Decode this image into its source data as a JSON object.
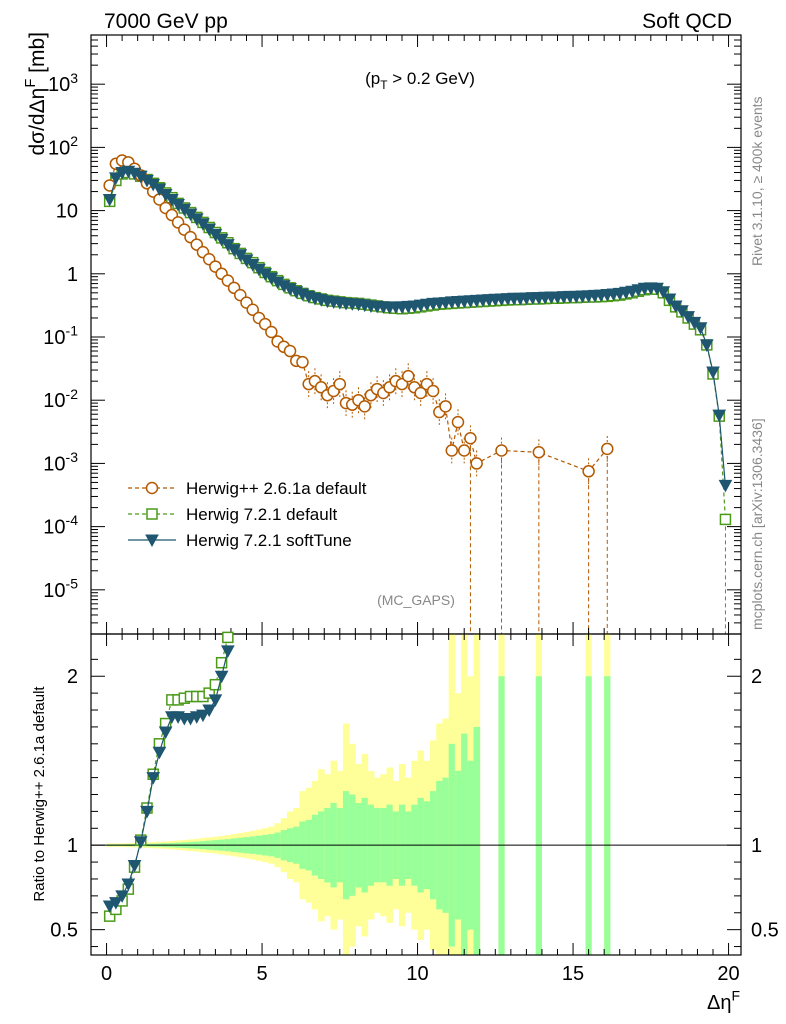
{
  "header": {
    "left": "7000 GeV pp",
    "right": "Soft QCD"
  },
  "side_text": {
    "top": "Rivet 3.1.10, ≥ 400k events",
    "bottom": "mcplots.cern.ch [arXiv:1306.3436]"
  },
  "chart_data": [
    {
      "type": "line",
      "panel": "main",
      "annotation": "(p_T > 0.2 GeV)",
      "watermark": "(MC_GAPS)",
      "ylabel": "dσ/dΔη^F [mb]",
      "yscale": "log",
      "ylim": [
        2e-06,
        6000
      ],
      "xlim": [
        -0.5,
        20.4
      ],
      "yticks": [
        {
          "v": 1000,
          "label": "10^3"
        },
        {
          "v": 100,
          "label": "10^2"
        },
        {
          "v": 10,
          "label": "10"
        },
        {
          "v": 1,
          "label": "1"
        },
        {
          "v": 0.1,
          "label": "10^-1"
        },
        {
          "v": 0.01,
          "label": "10^-2"
        },
        {
          "v": 0.001,
          "label": "10^-3"
        },
        {
          "v": 0.0001,
          "label": "10^-4"
        },
        {
          "v": 1e-05,
          "label": "10^-5"
        }
      ],
      "legend_position": "lower-left",
      "series": [
        {
          "name": "Herwig++ 2.6.1a default",
          "color": "#b35900",
          "marker": "circle",
          "line": "dashed",
          "x": [
            0.1,
            0.3,
            0.5,
            0.7,
            0.9,
            1.1,
            1.3,
            1.5,
            1.7,
            1.9,
            2.1,
            2.3,
            2.5,
            2.7,
            2.9,
            3.1,
            3.3,
            3.5,
            3.7,
            3.9,
            4.1,
            4.3,
            4.5,
            4.7,
            4.9,
            5.1,
            5.3,
            5.5,
            5.7,
            5.9,
            6.1,
            6.3,
            6.5,
            6.7,
            6.9,
            7.1,
            7.3,
            7.5,
            7.7,
            7.9,
            8.1,
            8.3,
            8.5,
            8.7,
            8.9,
            9.1,
            9.3,
            9.5,
            9.7,
            9.9,
            10.1,
            10.3,
            10.5,
            10.7,
            10.9,
            11.1,
            11.3,
            11.5,
            11.7,
            11.9,
            12.7,
            13.9,
            15.5,
            16.1
          ],
          "y": [
            25,
            55,
            62,
            58,
            46,
            36,
            27,
            20,
            15,
            11,
            8.5,
            6.5,
            5,
            3.8,
            2.9,
            2.2,
            1.7,
            1.3,
            1,
            0.78,
            0.6,
            0.46,
            0.35,
            0.27,
            0.2,
            0.16,
            0.12,
            0.085,
            0.07,
            0.06,
            0.042,
            0.04,
            0.018,
            0.02,
            0.016,
            0.012,
            0.014,
            0.018,
            0.009,
            0.0085,
            0.01,
            0.008,
            0.012,
            0.015,
            0.013,
            0.016,
            0.02,
            0.018,
            0.024,
            0.016,
            0.013,
            0.018,
            0.014,
            0.0065,
            0.008,
            0.0016,
            0.0045,
            0.0016,
            0.0025,
            0.001,
            0.0016,
            0.0015,
            0.00075,
            0.0017
          ]
        },
        {
          "name": "Herwig 7.2.1 default",
          "color": "#4c9a1a",
          "marker": "square",
          "line": "dashed",
          "x": [
            0.1,
            0.3,
            0.5,
            0.7,
            0.9,
            1.1,
            1.3,
            1.5,
            1.7,
            1.9,
            2.1,
            2.3,
            2.5,
            2.7,
            2.9,
            3.1,
            3.3,
            3.5,
            3.7,
            3.9,
            4.1,
            4.3,
            4.5,
            4.7,
            4.9,
            5.1,
            5.3,
            5.5,
            5.7,
            5.9,
            6.1,
            6.3,
            6.5,
            6.7,
            6.9,
            7.1,
            7.3,
            7.5,
            7.7,
            7.9,
            8.1,
            8.3,
            8.5,
            8.7,
            8.9,
            9.1,
            9.3,
            9.5,
            9.7,
            9.9,
            10.1,
            10.3,
            10.5,
            10.7,
            10.9,
            11.1,
            11.3,
            11.5,
            11.7,
            11.9,
            12.1,
            12.3,
            12.5,
            12.7,
            12.9,
            13.1,
            13.3,
            13.5,
            13.7,
            13.9,
            14.1,
            14.3,
            14.5,
            14.7,
            14.9,
            15.1,
            15.3,
            15.5,
            15.7,
            15.9,
            16.1,
            16.3,
            16.5,
            16.7,
            16.9,
            17.1,
            17.3,
            17.5,
            17.7,
            17.9,
            18.1,
            18.3,
            18.5,
            18.7,
            18.9,
            19.1,
            19.3,
            19.5,
            19.7,
            19.9
          ],
          "y": [
            14,
            30,
            38,
            40,
            38,
            35,
            31,
            27,
            23,
            19,
            16,
            13,
            11,
            9.3,
            7.8,
            6.5,
            5.4,
            4.5,
            3.7,
            3.1,
            2.5,
            2.1,
            1.75,
            1.5,
            1.25,
            1.05,
            0.9,
            0.78,
            0.68,
            0.6,
            0.54,
            0.49,
            0.45,
            0.42,
            0.4,
            0.38,
            0.37,
            0.36,
            0.35,
            0.345,
            0.34,
            0.33,
            0.32,
            0.31,
            0.3,
            0.29,
            0.285,
            0.28,
            0.285,
            0.29,
            0.3,
            0.31,
            0.32,
            0.33,
            0.335,
            0.34,
            0.345,
            0.35,
            0.355,
            0.36,
            0.365,
            0.37,
            0.375,
            0.38,
            0.385,
            0.39,
            0.39,
            0.395,
            0.4,
            0.4,
            0.405,
            0.41,
            0.41,
            0.415,
            0.42,
            0.42,
            0.425,
            0.43,
            0.43,
            0.435,
            0.44,
            0.45,
            0.46,
            0.48,
            0.5,
            0.53,
            0.56,
            0.58,
            0.57,
            0.5,
            0.38,
            0.3,
            0.25,
            0.2,
            0.16,
            0.13,
            0.075,
            0.026,
            0.0056,
            0.00013
          ]
        },
        {
          "name": "Herwig 7.2.1 softTune",
          "color": "#1f5670",
          "marker": "triangle-down",
          "line": "solid",
          "x": [
            0.1,
            0.3,
            0.5,
            0.7,
            0.9,
            1.1,
            1.3,
            1.5,
            1.7,
            1.9,
            2.1,
            2.3,
            2.5,
            2.7,
            2.9,
            3.1,
            3.3,
            3.5,
            3.7,
            3.9,
            4.1,
            4.3,
            4.5,
            4.7,
            4.9,
            5.1,
            5.3,
            5.5,
            5.7,
            5.9,
            6.1,
            6.3,
            6.5,
            6.7,
            6.9,
            7.1,
            7.3,
            7.5,
            7.7,
            7.9,
            8.1,
            8.3,
            8.5,
            8.7,
            8.9,
            9.1,
            9.3,
            9.5,
            9.7,
            9.9,
            10.1,
            10.3,
            10.5,
            10.7,
            10.9,
            11.1,
            11.3,
            11.5,
            11.7,
            11.9,
            12.1,
            12.3,
            12.5,
            12.7,
            12.9,
            13.1,
            13.3,
            13.5,
            13.7,
            13.9,
            14.1,
            14.3,
            14.5,
            14.7,
            14.9,
            15.1,
            15.3,
            15.5,
            15.7,
            15.9,
            16.1,
            16.3,
            16.5,
            16.7,
            16.9,
            17.1,
            17.3,
            17.5,
            17.7,
            17.9,
            18.1,
            18.3,
            18.5,
            18.7,
            18.9,
            19.1,
            19.3,
            19.5,
            19.7,
            19.9
          ],
          "y": [
            15,
            33,
            40,
            42,
            39,
            35,
            30,
            26,
            22,
            18,
            15,
            12.5,
            10.5,
            8.8,
            7.4,
            6.2,
            5.1,
            4.2,
            3.5,
            2.9,
            2.4,
            2,
            1.65,
            1.4,
            1.18,
            1,
            0.86,
            0.74,
            0.65,
            0.58,
            0.52,
            0.48,
            0.44,
            0.41,
            0.39,
            0.37,
            0.36,
            0.35,
            0.34,
            0.335,
            0.33,
            0.32,
            0.31,
            0.305,
            0.3,
            0.295,
            0.3,
            0.3,
            0.305,
            0.31,
            0.32,
            0.33,
            0.34,
            0.345,
            0.35,
            0.36,
            0.365,
            0.37,
            0.375,
            0.38,
            0.385,
            0.39,
            0.395,
            0.4,
            0.405,
            0.41,
            0.41,
            0.415,
            0.42,
            0.42,
            0.425,
            0.43,
            0.43,
            0.435,
            0.44,
            0.44,
            0.445,
            0.45,
            0.455,
            0.46,
            0.47,
            0.48,
            0.49,
            0.51,
            0.53,
            0.56,
            0.59,
            0.6,
            0.59,
            0.52,
            0.4,
            0.31,
            0.26,
            0.21,
            0.17,
            0.14,
            0.075,
            0.028,
            0.0058,
            0.00045
          ]
        }
      ]
    },
    {
      "type": "line",
      "panel": "ratio",
      "ylabel": "Ratio to Herwig++ 2.6.1a default",
      "xlabel": "Δη^F",
      "ylim": [
        0.35,
        2.25
      ],
      "xlim": [
        -0.5,
        20.4
      ],
      "xticks": [
        0,
        5,
        10,
        15,
        20
      ],
      "yticks": [
        0.5,
        1,
        2
      ],
      "band_colors": {
        "inner": "#99ff99",
        "outer": "#ffff99"
      },
      "bands": {
        "x_edges": [
          0.0,
          0.2,
          0.4,
          0.6,
          0.8,
          1.0,
          1.2,
          1.4,
          1.6,
          1.8,
          2.0,
          2.2,
          2.4,
          2.6,
          2.8,
          3.0,
          3.2,
          3.4,
          3.6,
          3.8,
          4.0,
          4.2,
          4.4,
          4.6,
          4.8,
          5.0,
          5.2,
          5.4,
          5.6,
          5.8,
          6.0,
          6.2,
          6.4,
          6.6,
          6.8,
          7.0,
          7.2,
          7.4,
          7.6,
          7.8,
          8.0,
          8.2,
          8.4,
          8.6,
          8.8,
          9.0,
          9.2,
          9.4,
          9.6,
          9.8,
          10.0,
          10.2,
          10.4,
          10.6,
          10.8,
          11.0,
          11.2,
          11.4,
          11.6,
          11.8,
          12.0
        ],
        "inner": [
          0.005,
          0.005,
          0.005,
          0.006,
          0.006,
          0.007,
          0.008,
          0.009,
          0.01,
          0.012,
          0.013,
          0.015,
          0.017,
          0.019,
          0.021,
          0.024,
          0.027,
          0.03,
          0.033,
          0.036,
          0.04,
          0.044,
          0.048,
          0.052,
          0.056,
          0.061,
          0.066,
          0.075,
          0.09,
          0.1,
          0.11,
          0.14,
          0.15,
          0.18,
          0.2,
          0.22,
          0.25,
          0.22,
          0.32,
          0.3,
          0.25,
          0.28,
          0.24,
          0.22,
          0.22,
          0.24,
          0.2,
          0.24,
          0.2,
          0.24,
          0.28,
          0.26,
          0.32,
          0.38,
          0.4,
          0.6,
          0.44,
          0.66,
          0.5,
          0.7
        ],
        "outer": [
          0.01,
          0.01,
          0.011,
          0.012,
          0.013,
          0.014,
          0.016,
          0.018,
          0.02,
          0.022,
          0.025,
          0.028,
          0.031,
          0.034,
          0.038,
          0.042,
          0.046,
          0.05,
          0.055,
          0.06,
          0.066,
          0.072,
          0.078,
          0.085,
          0.092,
          0.1,
          0.11,
          0.13,
          0.16,
          0.2,
          0.22,
          0.32,
          0.34,
          0.38,
          0.45,
          0.42,
          0.5,
          0.44,
          0.72,
          0.6,
          0.48,
          0.54,
          0.44,
          0.4,
          0.42,
          0.46,
          0.38,
          0.48,
          0.4,
          0.5,
          0.56,
          0.5,
          0.62,
          0.72,
          0.75,
          1.25,
          0.9,
          1.25,
          1.0,
          1.25
        ],
        "spikes": [
          {
            "x": 12.7,
            "inner": 1.0,
            "outer": 1.4
          },
          {
            "x": 13.9,
            "inner": 1.0,
            "outer": 1.4
          },
          {
            "x": 15.5,
            "inner": 1.0,
            "outer": 1.4
          },
          {
            "x": 16.1,
            "inner": 1.0,
            "outer": 1.4
          }
        ]
      },
      "series": [
        {
          "name": "Herwig 7.2.1 default",
          "color": "#4c9a1a",
          "marker": "square",
          "line": "dashed",
          "x": [
            0.1,
            0.3,
            0.5,
            0.7,
            0.9,
            1.1,
            1.3,
            1.5,
            1.7,
            1.9,
            2.1,
            2.3,
            2.5,
            2.7,
            2.9,
            3.1,
            3.3,
            3.5,
            3.7,
            3.9
          ],
          "y": [
            0.58,
            0.62,
            0.67,
            0.74,
            0.87,
            1.03,
            1.22,
            1.42,
            1.6,
            1.72,
            1.86,
            1.86,
            1.87,
            1.88,
            1.88,
            1.88,
            1.9,
            1.95,
            2.08,
            2.23
          ]
        },
        {
          "name": "Herwig 7.2.1 softTune",
          "color": "#1f5670",
          "marker": "triangle-down",
          "line": "solid",
          "x": [
            0.1,
            0.3,
            0.5,
            0.7,
            0.9,
            1.1,
            1.3,
            1.5,
            1.7,
            1.9,
            2.1,
            2.3,
            2.5,
            2.7,
            2.9,
            3.1,
            3.3,
            3.5,
            3.7,
            3.9
          ],
          "y": [
            0.64,
            0.66,
            0.7,
            0.77,
            0.88,
            1.02,
            1.2,
            1.4,
            1.55,
            1.67,
            1.76,
            1.76,
            1.75,
            1.75,
            1.76,
            1.77,
            1.8,
            1.86,
            2.0,
            2.15
          ]
        }
      ]
    }
  ]
}
